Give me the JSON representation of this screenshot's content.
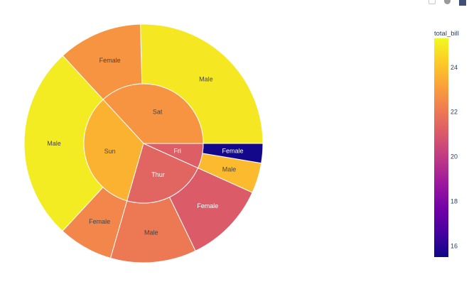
{
  "modebar": {
    "icons": [
      "camera-icon",
      "zoom-icon",
      "plotly-logo-icon"
    ]
  },
  "chart_data": {
    "type": "sunburst",
    "value_field": "total_bill",
    "inner": [
      {
        "label": "Sat",
        "value": 1778.4,
        "color_value": 22.8
      },
      {
        "label": "Sun",
        "value": 1627.16,
        "color_value": 23.6
      },
      {
        "label": "Thur",
        "value": 1096.33,
        "color_value": 21.4
      },
      {
        "label": "Fri",
        "value": 325.88,
        "color_value": 21.2
      }
    ],
    "outer": [
      {
        "parent": "Sat",
        "label": "Male",
        "value": 1227.35,
        "color_value": 24.9
      },
      {
        "parent": "Sat",
        "label": "Female",
        "value": 551.05,
        "color_value": 22.8
      },
      {
        "parent": "Sun",
        "label": "Male",
        "value": 1269.46,
        "color_value": 25.0
      },
      {
        "parent": "Sun",
        "label": "Female",
        "value": 357.7,
        "color_value": 22.4
      },
      {
        "parent": "Thur",
        "label": "Male",
        "value": 561.44,
        "color_value": 22.0
      },
      {
        "parent": "Thur",
        "label": "Female",
        "value": 534.89,
        "color_value": 21.1
      },
      {
        "parent": "Fri",
        "label": "Male",
        "value": 198.57,
        "color_value": 23.8
      },
      {
        "parent": "Fri",
        "label": "Female",
        "value": 127.31,
        "color_value": 15.6
      }
    ],
    "colorbar": {
      "title": "total_bill",
      "range": [
        15.5,
        25.3
      ],
      "ticks": [
        16,
        18,
        20,
        22,
        24
      ],
      "colorscale": [
        "#0d0887",
        "#46039f",
        "#7201a8",
        "#9c179e",
        "#bd3786",
        "#d8576b",
        "#ed7953",
        "#fb9f3a",
        "#fdca26",
        "#f0f921"
      ]
    }
  }
}
